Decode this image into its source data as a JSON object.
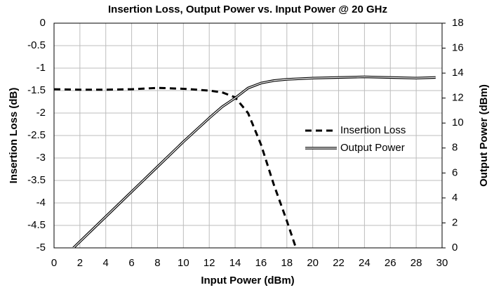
{
  "chart_data": {
    "type": "line",
    "title": "Insertion Loss, Output Power vs. Input Power @ 20 GHz",
    "x_label": "Input Power (dBm)",
    "y_label": "Insertion Loss (dB)",
    "y2_label": "Output Power (dBm)",
    "xlim": [
      0,
      30
    ],
    "xticks": [
      0,
      2,
      4,
      6,
      8,
      10,
      12,
      14,
      16,
      18,
      20,
      22,
      24,
      26,
      28,
      30
    ],
    "ylim": [
      -5,
      0
    ],
    "yticks": [
      0,
      -0.5,
      -1,
      -1.5,
      -2,
      -2.5,
      -3,
      -3.5,
      -4,
      -4.5,
      -5
    ],
    "y2lim": [
      0,
      18
    ],
    "y2ticks": [
      0,
      2,
      4,
      6,
      8,
      10,
      12,
      14,
      16,
      18
    ],
    "grid": true,
    "legend": "center-right",
    "series": [
      {
        "name": "Insertion Loss",
        "color": "#000000",
        "dash": true,
        "x": [
          0,
          2,
          4,
          6,
          8,
          10,
          12,
          13,
          14,
          15,
          16,
          17,
          18,
          18.7
        ],
        "values": [
          -1.47,
          -1.48,
          -1.48,
          -1.47,
          -1.44,
          -1.46,
          -1.5,
          -1.54,
          -1.65,
          -2.0,
          -2.7,
          -3.6,
          -4.4,
          -5.0
        ]
      },
      {
        "name": "Output Power",
        "color": "#000000",
        "dash": false,
        "axis": "y2",
        "x": [
          1.5,
          4,
          6,
          8,
          10,
          12,
          13,
          14,
          15,
          16,
          17,
          18,
          20,
          22,
          24,
          26,
          28,
          29.5
        ],
        "values": [
          0,
          2.5,
          4.5,
          6.5,
          8.5,
          10.4,
          11.3,
          12.0,
          12.8,
          13.2,
          13.4,
          13.5,
          13.6,
          13.65,
          13.7,
          13.65,
          13.6,
          13.65
        ]
      }
    ]
  }
}
